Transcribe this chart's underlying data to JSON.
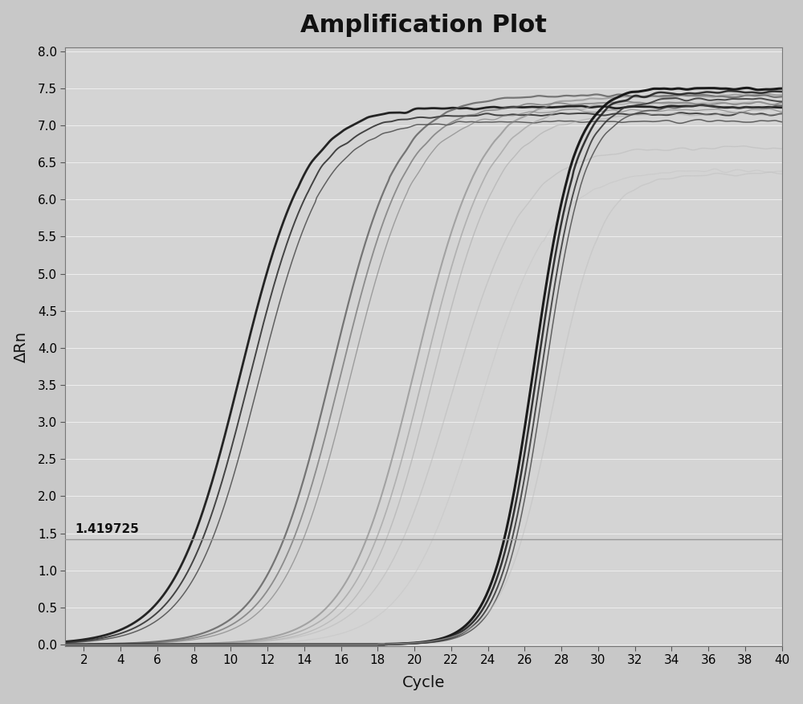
{
  "title": "Amplification Plot",
  "xlabel": "Cycle",
  "ylabel": "ΔRn",
  "xlim": [
    1,
    40
  ],
  "ylim": [
    0.0,
    8.0
  ],
  "xticks": [
    2,
    4,
    6,
    8,
    10,
    12,
    14,
    16,
    18,
    20,
    22,
    24,
    26,
    28,
    30,
    32,
    34,
    36,
    38,
    40
  ],
  "yticks": [
    0.0,
    0.5,
    1.0,
    1.5,
    2.0,
    2.5,
    3.0,
    3.5,
    4.0,
    4.5,
    5.0,
    5.5,
    6.0,
    6.5,
    7.0,
    7.5,
    8.0
  ],
  "threshold": 1.419725,
  "threshold_label": "1.419725",
  "background_color": "#c8c8c8",
  "plot_bg_color": "#d4d4d4",
  "title_fontsize": 22,
  "axis_label_fontsize": 14,
  "tick_fontsize": 11,
  "curves": [
    {
      "ct": 10.5,
      "plateau": 7.25,
      "slope": 0.55,
      "color": "#1a1a1a",
      "lw": 2.0,
      "alpha": 0.95
    },
    {
      "ct": 11.0,
      "plateau": 7.15,
      "slope": 0.55,
      "color": "#2a2a2a",
      "lw": 1.4,
      "alpha": 0.85
    },
    {
      "ct": 11.5,
      "plateau": 7.05,
      "slope": 0.55,
      "color": "#3a3a3a",
      "lw": 1.1,
      "alpha": 0.75
    },
    {
      "ct": 15.5,
      "plateau": 7.4,
      "slope": 0.55,
      "color": "#555555",
      "lw": 1.6,
      "alpha": 0.75
    },
    {
      "ct": 16.0,
      "plateau": 7.3,
      "slope": 0.55,
      "color": "#666666",
      "lw": 1.3,
      "alpha": 0.65
    },
    {
      "ct": 16.5,
      "plateau": 7.2,
      "slope": 0.55,
      "color": "#787878",
      "lw": 1.0,
      "alpha": 0.6
    },
    {
      "ct": 20.0,
      "plateau": 7.4,
      "slope": 0.55,
      "color": "#888888",
      "lw": 1.5,
      "alpha": 0.65
    },
    {
      "ct": 20.5,
      "plateau": 7.3,
      "slope": 0.55,
      "color": "#989898",
      "lw": 1.2,
      "alpha": 0.6
    },
    {
      "ct": 21.0,
      "plateau": 7.15,
      "slope": 0.55,
      "color": "#a8a8a8",
      "lw": 1.0,
      "alpha": 0.55
    },
    {
      "ct": 22.0,
      "plateau": 6.7,
      "slope": 0.5,
      "color": "#b8b8b8",
      "lw": 1.0,
      "alpha": 0.5
    },
    {
      "ct": 23.5,
      "plateau": 6.4,
      "slope": 0.5,
      "color": "#c4c4c4",
      "lw": 0.9,
      "alpha": 0.5
    },
    {
      "ct": 26.5,
      "plateau": 7.5,
      "slope": 0.9,
      "color": "#111111",
      "lw": 2.2,
      "alpha": 0.95
    },
    {
      "ct": 26.7,
      "plateau": 7.45,
      "slope": 0.9,
      "color": "#222222",
      "lw": 1.8,
      "alpha": 0.9
    },
    {
      "ct": 26.9,
      "plateau": 7.35,
      "slope": 0.9,
      "color": "#333333",
      "lw": 1.4,
      "alpha": 0.85
    },
    {
      "ct": 27.1,
      "plateau": 7.25,
      "slope": 0.9,
      "color": "#444444",
      "lw": 1.1,
      "alpha": 0.8
    },
    {
      "ct": 27.5,
      "plateau": 6.35,
      "slope": 0.75,
      "color": "#c0c0c0",
      "lw": 1.0,
      "alpha": 0.55
    }
  ]
}
